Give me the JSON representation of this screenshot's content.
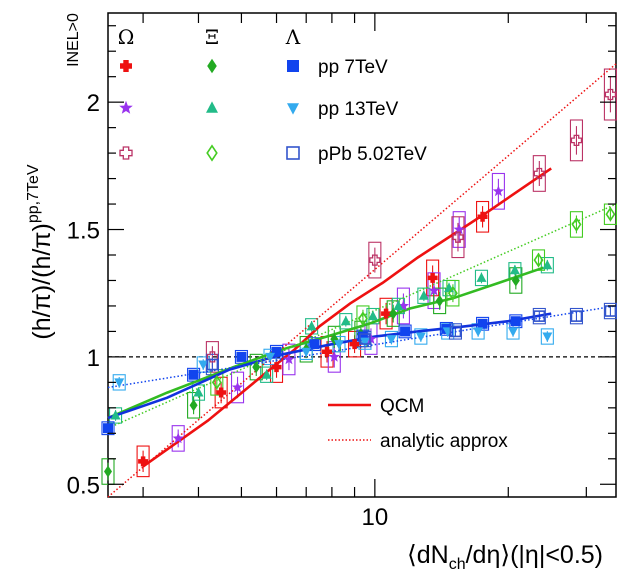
{
  "chart_data": {
    "type": "scatter",
    "x_scale": "log",
    "xlim": [
      2.5,
      35
    ],
    "ylim": [
      0.45,
      2.35
    ],
    "x_tick_label": "10",
    "y_tick_labels": [
      "0.5",
      "1",
      "1.5",
      "2"
    ],
    "xlabel": {
      "open": "⟨dN",
      "sub": "ch",
      "mid": "/dη⟩(|η|<0.5)"
    },
    "ylabel": {
      "main": "(h/π)/(h/π)",
      "sup": "pp,7TeV",
      "sub": "INEL>0"
    },
    "reference_line": 1.0,
    "legend": {
      "species": [
        "Ω",
        "Ξ",
        "Λ"
      ],
      "systems": [
        "pp 7TeV",
        "pp 13TeV",
        "pPb 5.02TeV"
      ],
      "curves": [
        "QCM",
        "analytic approx"
      ]
    },
    "colors": {
      "omega_pp7": "#ee1111",
      "omega_pp13": "#9933ee",
      "omega_ppb": "#bb3366",
      "xi_pp7": "#22aa22",
      "xi_pp13": "#22bb88",
      "xi_ppb": "#44cc22",
      "lambda_pp7": "#1144ee",
      "lambda_pp13": "#33aaee",
      "lambda_ppb": "#3355cc",
      "qcm_omega": "#ee1111",
      "qcm_xi": "#33bb22",
      "qcm_lambda": "#1133dd"
    },
    "series": [
      {
        "name": "Ω pp 7TeV",
        "marker": "cross-filled",
        "color": "omega_pp7",
        "x": [
          3.0,
          4.5,
          6.0,
          7.8,
          9.0,
          10.6,
          13.5,
          17.5
        ],
        "y": [
          0.59,
          0.86,
          0.96,
          1.02,
          1.05,
          1.17,
          1.31,
          1.55
        ],
        "box": [
          0.12,
          0.12,
          0.12,
          0.12,
          0.1,
          0.12,
          0.14,
          0.12
        ]
      },
      {
        "name": "Ω pp 13TeV",
        "marker": "star",
        "color": "omega_pp13",
        "x": [
          3.6,
          4.9,
          6.4,
          8.1,
          9.8,
          11.6,
          13.6,
          15.5,
          19.0
        ],
        "y": [
          0.68,
          0.88,
          0.99,
          1.0,
          1.07,
          1.2,
          1.26,
          1.5,
          1.65
        ],
        "box": [
          0.1,
          0.12,
          0.12,
          0.12,
          0.12,
          0.14,
          0.14,
          0.14,
          0.14
        ]
      },
      {
        "name": "Ω pPb 5.02TeV",
        "marker": "cross-open",
        "color": "omega_ppb",
        "x": [
          4.3,
          10.0,
          15.4,
          23.5,
          28.5,
          34.0
        ],
        "y": [
          1.0,
          1.38,
          1.47,
          1.72,
          1.85,
          2.03
        ],
        "box": [
          0.12,
          0.14,
          0.16,
          0.14,
          0.16,
          0.2
        ]
      },
      {
        "name": "Ξ pp 7TeV",
        "marker": "diamond-filled",
        "color": "xi_pp7",
        "x": [
          2.5,
          3.9,
          5.4,
          7.0,
          8.1,
          9.3,
          11.0,
          14.0,
          20.8
        ],
        "y": [
          0.55,
          0.81,
          0.96,
          1.03,
          1.07,
          1.09,
          1.17,
          1.22,
          1.3
        ],
        "box": [
          0.1,
          0.1,
          0.1,
          0.1,
          0.1,
          0.1,
          0.1,
          0.1,
          0.1
        ]
      },
      {
        "name": "Ξ pp 13TeV",
        "marker": "triangle-up",
        "color": "xi_pp13",
        "x": [
          2.6,
          4.0,
          5.7,
          7.2,
          8.6,
          9.9,
          11.3,
          12.9,
          14.7,
          17.4,
          20.7,
          24.5
        ],
        "y": [
          0.77,
          0.86,
          0.93,
          1.12,
          1.14,
          1.16,
          1.2,
          1.24,
          1.27,
          1.31,
          1.34,
          1.36
        ],
        "box": [
          0.06,
          0.06,
          0.06,
          0.06,
          0.06,
          0.06,
          0.06,
          0.06,
          0.06,
          0.06,
          0.06,
          0.06
        ]
      },
      {
        "name": "Ξ pPb 5.02TeV",
        "marker": "diamond-open",
        "color": "xi_ppb",
        "x": [
          4.4,
          9.4,
          15.0,
          23.4,
          28.5,
          34.0
        ],
        "y": [
          0.9,
          1.15,
          1.25,
          1.38,
          1.52,
          1.56
        ],
        "box": [
          0.1,
          0.1,
          0.1,
          0.08,
          0.1,
          0.08
        ]
      },
      {
        "name": "Λ pp 7TeV",
        "marker": "square-filled",
        "color": "lambda_pp7",
        "x": [
          2.5,
          3.9,
          5.0,
          6.0,
          7.3,
          9.4,
          11.7,
          14.5,
          17.5,
          20.8
        ],
        "y": [
          0.72,
          0.93,
          1.0,
          1.02,
          1.05,
          1.08,
          1.1,
          1.11,
          1.13,
          1.14
        ],
        "box": [
          0.05,
          0.05,
          0.05,
          0.05,
          0.05,
          0.05,
          0.05,
          0.05,
          0.05,
          0.05
        ]
      },
      {
        "name": "Λ pp 13TeV",
        "marker": "triangle-down",
        "color": "lambda_pp13",
        "x": [
          2.65,
          4.1,
          5.8,
          7.0,
          8.3,
          9.5,
          10.9,
          12.7,
          14.6,
          17.1,
          20.5,
          24.5
        ],
        "y": [
          0.9,
          0.97,
          1.0,
          1.02,
          1.05,
          1.06,
          1.07,
          1.08,
          1.1,
          1.1,
          1.1,
          1.08
        ],
        "box": [
          0.06,
          0.06,
          0.06,
          0.06,
          0.06,
          0.06,
          0.06,
          0.06,
          0.06,
          0.06,
          0.06,
          0.06
        ]
      },
      {
        "name": "Λ pPb 5.02TeV",
        "marker": "square-open",
        "color": "lambda_ppb",
        "x": [
          4.3,
          9.5,
          15.2,
          23.5,
          28.5,
          34.0
        ],
        "y": [
          0.97,
          1.07,
          1.1,
          1.16,
          1.16,
          1.18
        ],
        "box": [
          0.08,
          0.06,
          0.06,
          0.06,
          0.06,
          0.06
        ]
      }
    ],
    "curves": [
      {
        "name": "QCM",
        "species": "Ω",
        "style": "solid",
        "color": "qcm_omega",
        "x": [
          3.0,
          4.2,
          5.7,
          6.6,
          7.5,
          8.8,
          10.4,
          12.5,
          15.0,
          18.0,
          21.0,
          25.0
        ],
        "y": [
          0.57,
          0.75,
          0.94,
          1.03,
          1.12,
          1.21,
          1.29,
          1.39,
          1.48,
          1.57,
          1.65,
          1.74
        ]
      },
      {
        "name": "QCM",
        "species": "Ξ",
        "style": "solid",
        "color": "qcm_xi",
        "x": [
          2.5,
          3.4,
          4.8,
          6.2,
          7.8,
          9.7,
          12.0,
          15.0,
          19.0,
          24.0
        ],
        "y": [
          0.76,
          0.86,
          0.96,
          1.03,
          1.08,
          1.13,
          1.19,
          1.23,
          1.29,
          1.35
        ]
      },
      {
        "name": "QCM",
        "species": "Λ",
        "style": "solid",
        "color": "qcm_lambda",
        "x": [
          2.5,
          3.4,
          4.7,
          6.2,
          8.0,
          10.0,
          12.5,
          16.0,
          20.0,
          25.0
        ],
        "y": [
          0.76,
          0.84,
          0.95,
          1.01,
          1.05,
          1.08,
          1.1,
          1.12,
          1.14,
          1.17
        ]
      },
      {
        "name": "analytic approx",
        "species": "Ω",
        "style": "dotted",
        "color": "qcm_omega",
        "x": [
          2.5,
          35.0
        ],
        "y": [
          0.45,
          2.15
        ]
      },
      {
        "name": "analytic approx",
        "species": "Ξ",
        "style": "dotted",
        "color": "xi_ppb",
        "x": [
          2.5,
          35.0
        ],
        "y": [
          0.72,
          1.6
        ]
      },
      {
        "name": "analytic approx",
        "species": "Λ",
        "style": "dotted",
        "color": "lambda_pp7",
        "x": [
          2.5,
          35.0
        ],
        "y": [
          0.88,
          1.2
        ]
      }
    ]
  }
}
